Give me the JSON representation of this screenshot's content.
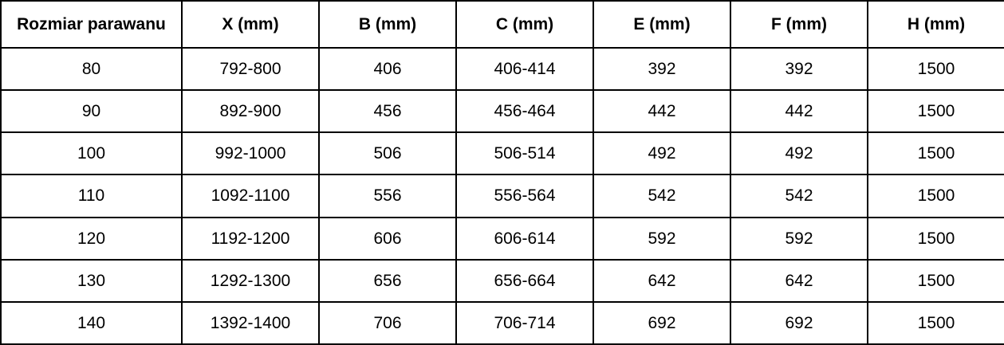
{
  "chart_data": {
    "type": "table",
    "title": "",
    "columns": [
      "Rozmiar parawanu",
      "X (mm)",
      "B (mm)",
      "C (mm)",
      "E (mm)",
      "F (mm)",
      "H (mm)"
    ],
    "rows": [
      [
        "80",
        "792-800",
        "406",
        "406-414",
        "392",
        "392",
        "1500"
      ],
      [
        "90",
        "892-900",
        "456",
        "456-464",
        "442",
        "442",
        "1500"
      ],
      [
        "100",
        "992-1000",
        "506",
        "506-514",
        "492",
        "492",
        "1500"
      ],
      [
        "110",
        "1092-1100",
        "556",
        "556-564",
        "542",
        "542",
        "1500"
      ],
      [
        "120",
        "1192-1200",
        "606",
        "606-614",
        "592",
        "592",
        "1500"
      ],
      [
        "130",
        "1292-1300",
        "656",
        "656-664",
        "642",
        "642",
        "1500"
      ],
      [
        "140",
        "1392-1400",
        "706",
        "706-714",
        "692",
        "692",
        "1500"
      ]
    ],
    "layout": {
      "grid": "all-borders",
      "header_bold": true,
      "text_align": "center"
    }
  },
  "colors": {
    "border": "#000000",
    "text": "#000000",
    "background": "#ffffff"
  }
}
